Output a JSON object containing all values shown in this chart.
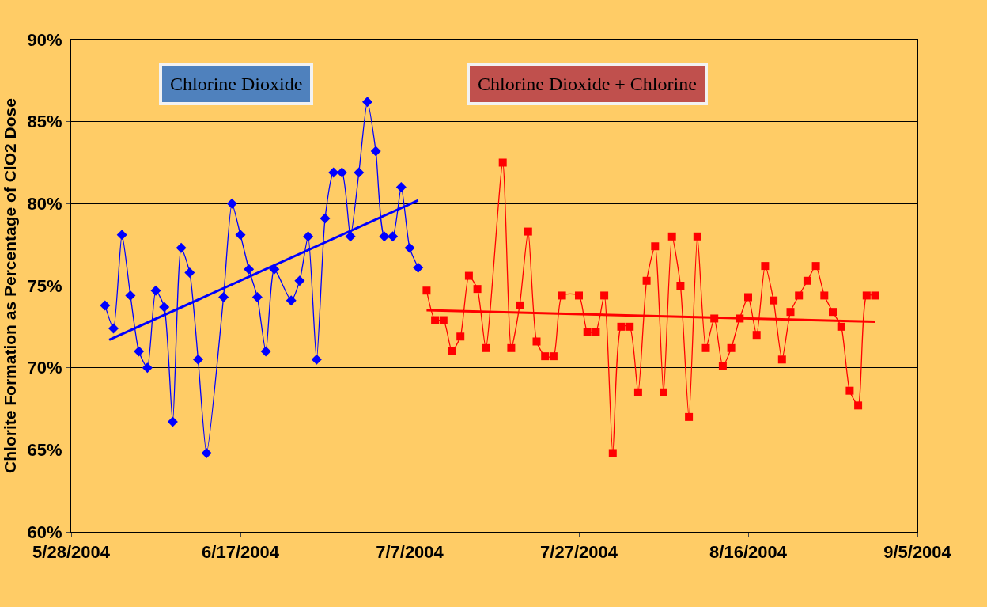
{
  "chart_data": {
    "type": "line",
    "ylabel": "Chlorite Formation as Percentage of ClO2 Dose",
    "annotations": [
      "Chlorine Dioxide",
      "Chlorine Dioxide + Chlorine"
    ],
    "xlim": [
      "2004-05-28",
      "2004-09-05"
    ],
    "xticks": [
      {
        "value": "2004-05-28",
        "label": "5/28/2004"
      },
      {
        "value": "2004-06-17",
        "label": "6/17/2004"
      },
      {
        "value": "2004-07-07",
        "label": "7/7/2004"
      },
      {
        "value": "2004-07-27",
        "label": "7/27/2004"
      },
      {
        "value": "2004-08-16",
        "label": "8/16/2004"
      },
      {
        "value": "2004-09-05",
        "label": "9/5/2004"
      }
    ],
    "ylim": [
      60,
      90
    ],
    "yticks": [
      {
        "value": 60,
        "label": "60%"
      },
      {
        "value": 65,
        "label": "65%"
      },
      {
        "value": 70,
        "label": "70%"
      },
      {
        "value": 75,
        "label": "75%"
      },
      {
        "value": 80,
        "label": "80%"
      },
      {
        "value": 85,
        "label": "85%"
      },
      {
        "value": 90,
        "label": "90%"
      }
    ],
    "grid": "y",
    "series": [
      {
        "color": "#0000ff",
        "marker": "diamond",
        "x": [
          "2004-06-01",
          "2004-06-02",
          "2004-06-03",
          "2004-06-04",
          "2004-06-05",
          "2004-06-06",
          "2004-06-07",
          "2004-06-08",
          "2004-06-09",
          "2004-06-10",
          "2004-06-11",
          "2004-06-12",
          "2004-06-13",
          "2004-06-15",
          "2004-06-16",
          "2004-06-17",
          "2004-06-18",
          "2004-06-19",
          "2004-06-20",
          "2004-06-21",
          "2004-06-23",
          "2004-06-24",
          "2004-06-25",
          "2004-06-26",
          "2004-06-27",
          "2004-06-28",
          "2004-06-29",
          "2004-06-30",
          "2004-07-01",
          "2004-07-02",
          "2004-07-03",
          "2004-07-04",
          "2004-07-05",
          "2004-07-06",
          "2004-07-07",
          "2004-07-08"
        ],
        "values": [
          73.8,
          72.4,
          78.1,
          74.4,
          71.0,
          70.0,
          74.7,
          73.7,
          66.7,
          77.3,
          75.8,
          70.5,
          64.8,
          74.3,
          80.0,
          78.1,
          76.0,
          74.3,
          71.0,
          76.0,
          74.1,
          75.3,
          78.0,
          70.5,
          79.1,
          81.9,
          81.9,
          78.0,
          81.9,
          86.2,
          83.2,
          78.0,
          78.0,
          81.0,
          77.3,
          76.1
        ]
      },
      {
        "color": "#ff0000",
        "marker": "square",
        "x": [
          "2004-07-09",
          "2004-07-10",
          "2004-07-11",
          "2004-07-12",
          "2004-07-13",
          "2004-07-14",
          "2004-07-15",
          "2004-07-16",
          "2004-07-18",
          "2004-07-19",
          "2004-07-20",
          "2004-07-21",
          "2004-07-22",
          "2004-07-23",
          "2004-07-24",
          "2004-07-25",
          "2004-07-27",
          "2004-07-28",
          "2004-07-29",
          "2004-07-30",
          "2004-07-31",
          "2004-08-01",
          "2004-08-02",
          "2004-08-03",
          "2004-08-04",
          "2004-08-05",
          "2004-08-06",
          "2004-08-07",
          "2004-08-08",
          "2004-08-09",
          "2004-08-10",
          "2004-08-11",
          "2004-08-12",
          "2004-08-13",
          "2004-08-14",
          "2004-08-15",
          "2004-08-16",
          "2004-08-17",
          "2004-08-18",
          "2004-08-19",
          "2004-08-20",
          "2004-08-21",
          "2004-08-22",
          "2004-08-23",
          "2004-08-24",
          "2004-08-25",
          "2004-08-26",
          "2004-08-27",
          "2004-08-28",
          "2004-08-29",
          "2004-08-30",
          "2004-08-31"
        ],
        "values": [
          74.7,
          72.9,
          72.9,
          71.0,
          71.9,
          75.6,
          74.8,
          71.2,
          82.5,
          71.2,
          73.8,
          78.3,
          71.6,
          70.7,
          70.7,
          74.4,
          74.4,
          72.2,
          72.2,
          74.4,
          64.8,
          72.5,
          72.5,
          68.5,
          75.3,
          77.4,
          68.5,
          78.0,
          75.0,
          67.0,
          78.0,
          71.2,
          73.0,
          70.1,
          71.2,
          73.0,
          74.3,
          72.0,
          76.2,
          74.1,
          70.5,
          73.4,
          74.4,
          75.3,
          76.2,
          74.4,
          73.4,
          72.5,
          68.6,
          67.7,
          74.4,
          74.4
        ]
      },
      {
        "color": "#0000ff",
        "marker": "none",
        "x": [
          "2004-06-01T12:00",
          "2004-07-08"
        ],
        "values": [
          71.7,
          80.2
        ]
      },
      {
        "color": "#ff0000",
        "marker": "none",
        "x": [
          "2004-07-09",
          "2004-08-31"
        ],
        "values": [
          73.5,
          72.8
        ]
      }
    ]
  }
}
